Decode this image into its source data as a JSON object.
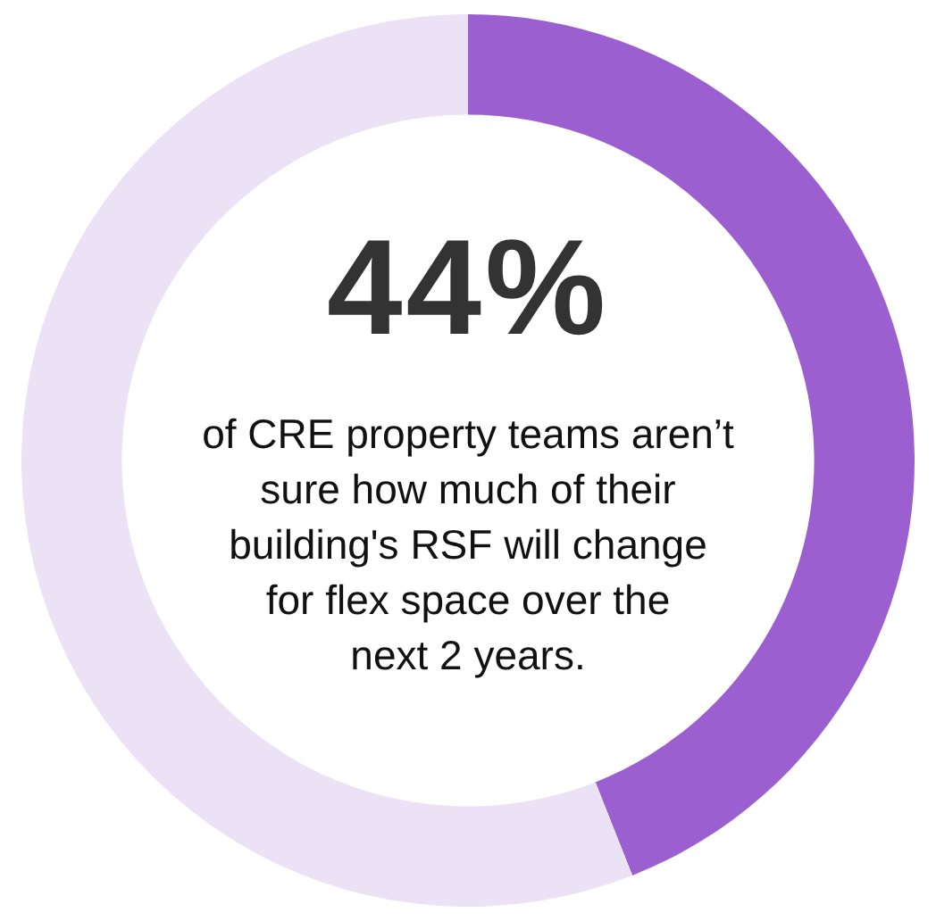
{
  "chart_data": {
    "type": "donut",
    "categories": [
      null,
      null
    ],
    "values": [
      44,
      56
    ],
    "colors": [
      "#9b5fd0",
      "#ece2f6"
    ],
    "legend": false,
    "annotations": [
      "44%",
      "of CRE property teams aren’t\nsure how much of their\nbuilding's RSF will change\nfor flex space over the\nnext 2 years."
    ]
  }
}
